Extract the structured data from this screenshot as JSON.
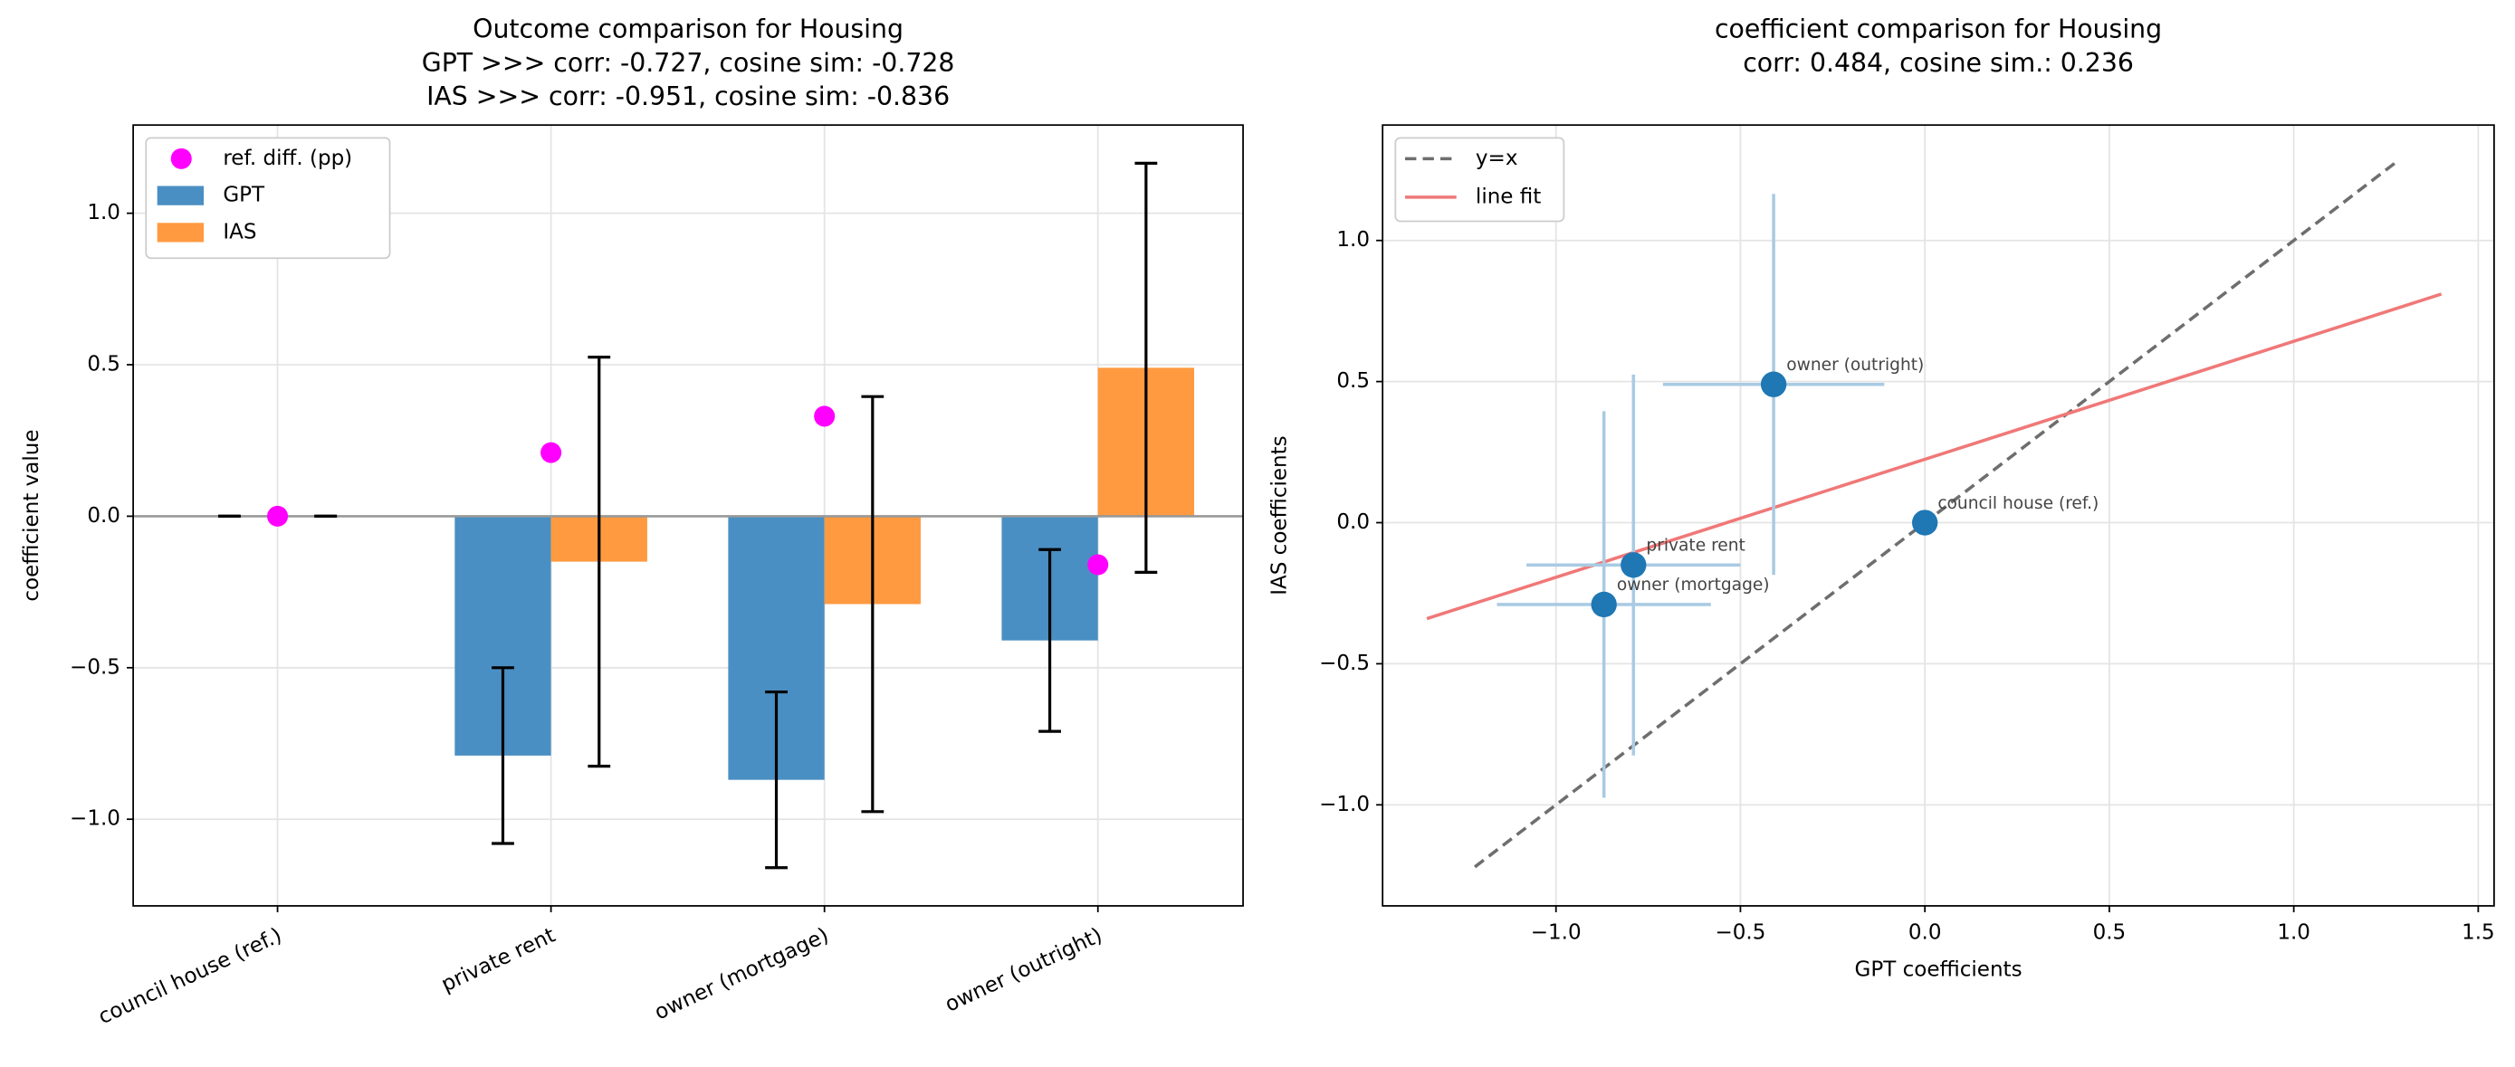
{
  "chart_data": [
    {
      "type": "bar",
      "title": [
        "Outcome comparison for Housing",
        "GPT >>> corr: -0.727,  cosine sim: -0.728",
        "IAS >>> corr: -0.951,  cosine sim: -0.836"
      ],
      "ylabel": "coefficient value",
      "categories": [
        "council house (ref.)",
        "private rent",
        "owner (mortgage)",
        "owner (outright)"
      ],
      "series": [
        {
          "name": "ref. diff. (pp)",
          "style": "point",
          "color": "#ff00ff",
          "values": [
            0,
            0.21,
            0.33,
            -0.16
          ]
        },
        {
          "name": "GPT",
          "style": "bar",
          "color": "#4a8fc3",
          "values": [
            0,
            -0.79,
            -0.87,
            -0.41
          ],
          "errors": [
            0,
            0.29,
            0.29,
            0.3
          ]
        },
        {
          "name": "IAS",
          "style": "bar",
          "color": "#ff9a40",
          "values": [
            0,
            -0.15,
            -0.29,
            0.49
          ],
          "errors": [
            0,
            0.675,
            0.685,
            0.675
          ]
        }
      ],
      "ylim": [
        -1.286,
        1.291
      ],
      "yticks": [
        {
          "value": -1.0,
          "label": "−1.0"
        },
        {
          "value": -0.5,
          "label": "−0.5"
        },
        {
          "value": 0.0,
          "label": "0.0"
        },
        0.5,
        {
          "value": 1.0,
          "label": "1.0"
        }
      ],
      "grid": true,
      "legend": "upper left"
    },
    {
      "type": "scatter",
      "title": [
        "coefficient comparison for Housing",
        "corr: 0.484, cosine sim.: 0.236"
      ],
      "xlabel": "GPT coefficients",
      "ylabel": "IAS coefficients",
      "labels": [
        "council house (ref.)",
        "private rent",
        "owner (mortgage)",
        "owner (outright)"
      ],
      "x": [
        0,
        -0.79,
        -0.87,
        -0.41
      ],
      "y": [
        0,
        -0.15,
        -0.29,
        0.49
      ],
      "xerr": [
        0,
        0.29,
        0.29,
        0.3
      ],
      "yerr": [
        0,
        0.675,
        0.685,
        0.675
      ],
      "color": "#1f77b4",
      "error_color": "#a9cbe3",
      "lines": [
        {
          "name": "y=x",
          "x": [
            -1.22,
            1.28
          ],
          "y": [
            -1.22,
            1.28
          ],
          "color": "#6e6e6e",
          "dashed": true
        },
        {
          "name": "line fit",
          "x": [
            -1.35,
            1.4
          ],
          "y": [
            -0.34,
            0.81
          ],
          "color": "#f07878",
          "dashed": false
        }
      ],
      "xlim": [
        -1.47,
        1.543
      ],
      "ylim": [
        -1.358,
        1.409
      ],
      "xticks": [
        {
          "value": -1.0,
          "label": "−1.0"
        },
        {
          "value": -0.5,
          "label": "−0.5"
        },
        {
          "value": 0.0,
          "label": "0.0"
        },
        0.5,
        {
          "value": 1.0,
          "label": "1.0"
        },
        1.5
      ],
      "yticks": [
        {
          "value": -1.0,
          "label": "−1.0"
        },
        {
          "value": -0.5,
          "label": "−0.5"
        },
        {
          "value": 0.0,
          "label": "0.0"
        },
        0.5,
        {
          "value": 1.0,
          "label": "1.0"
        }
      ],
      "grid": true,
      "legend": "upper left"
    }
  ]
}
